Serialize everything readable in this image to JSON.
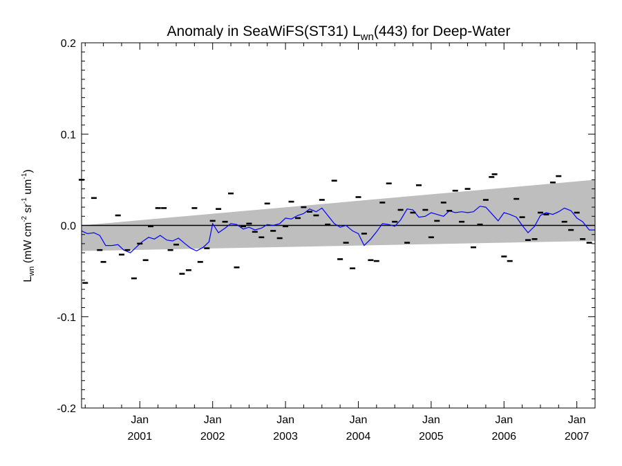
{
  "chart_data": {
    "type": "scatter",
    "title": {
      "prefix": "Anomaly in SeaWiFS(ST31) L",
      "subscript": "wn",
      "suffix": "(443) for Deep-Water"
    },
    "ylabel": {
      "main": "L",
      "subscript": "wn",
      "unit_open": " (mW cm",
      "exp1": "-2",
      "unit_mid": " sr",
      "exp2": "-1",
      "unit_end": " um",
      "exp3": "-1",
      "unit_close": ")"
    },
    "xlim": [
      2000.2,
      2007.25
    ],
    "ylim": [
      -0.2,
      0.2
    ],
    "y_ticks": [
      {
        "value": 0.2,
        "label": "0.2"
      },
      {
        "value": 0.1,
        "label": "0.1"
      },
      {
        "value": 0.0,
        "label": "0.0"
      },
      {
        "value": -0.1,
        "label": "-0.1"
      },
      {
        "value": -0.2,
        "label": "-0.2"
      }
    ],
    "x_ticks": [
      {
        "value": 2001.0,
        "month": "Jan",
        "year": "2001"
      },
      {
        "value": 2002.0,
        "month": "Jan",
        "year": "2002"
      },
      {
        "value": 2003.0,
        "month": "Jan",
        "year": "2003"
      },
      {
        "value": 2004.0,
        "month": "Jan",
        "year": "2004"
      },
      {
        "value": 2005.0,
        "month": "Jan",
        "year": "2005"
      },
      {
        "value": 2006.0,
        "month": "Jan",
        "year": "2006"
      },
      {
        "value": 2007.0,
        "month": "Jan",
        "year": "2007"
      }
    ],
    "zero_line": 0.0,
    "band": {
      "x_start": 2000.2,
      "x_end": 2007.25,
      "upper_start": 0.0,
      "upper_end": 0.05,
      "lower_start": -0.028,
      "lower_end": -0.017,
      "color": "#bebebe"
    },
    "series": [
      {
        "type": "line",
        "color": "#0000ff",
        "points": [
          [
            2000.2,
            -0.006
          ],
          [
            2000.28,
            -0.009
          ],
          [
            2000.37,
            -0.008
          ],
          [
            2000.45,
            -0.011
          ],
          [
            2000.53,
            -0.022
          ],
          [
            2000.62,
            -0.022
          ],
          [
            2000.7,
            -0.021
          ],
          [
            2000.78,
            -0.027
          ],
          [
            2000.87,
            -0.03
          ],
          [
            2000.95,
            -0.024
          ],
          [
            2001.03,
            -0.018
          ],
          [
            2001.12,
            -0.013
          ],
          [
            2001.2,
            -0.015
          ],
          [
            2001.28,
            -0.011
          ],
          [
            2001.37,
            -0.016
          ],
          [
            2001.45,
            -0.017
          ],
          [
            2001.53,
            -0.014
          ],
          [
            2001.62,
            -0.02
          ],
          [
            2001.7,
            -0.025
          ],
          [
            2001.78,
            -0.028
          ],
          [
            2001.87,
            -0.024
          ],
          [
            2001.95,
            -0.018
          ],
          [
            2002.0,
            0.002
          ],
          [
            2002.08,
            -0.008
          ],
          [
            2002.17,
            -0.003
          ],
          [
            2002.25,
            0.002
          ],
          [
            2002.33,
            0.001
          ],
          [
            2002.42,
            -0.004
          ],
          [
            2002.5,
            -0.002
          ],
          [
            2002.58,
            -0.005
          ],
          [
            2002.67,
            -0.003
          ],
          [
            2002.75,
            0.001
          ],
          [
            2002.83,
            0.0
          ],
          [
            2002.92,
            0.002
          ],
          [
            2003.0,
            0.008
          ],
          [
            2003.08,
            0.007
          ],
          [
            2003.17,
            0.011
          ],
          [
            2003.25,
            0.013
          ],
          [
            2003.33,
            0.018
          ],
          [
            2003.42,
            0.015
          ],
          [
            2003.5,
            0.019
          ],
          [
            2003.58,
            0.011
          ],
          [
            2003.67,
            0.002
          ],
          [
            2003.75,
            -0.002
          ],
          [
            2003.83,
            0.0
          ],
          [
            2003.92,
            -0.006
          ],
          [
            2004.0,
            -0.009
          ],
          [
            2004.08,
            -0.022
          ],
          [
            2004.17,
            -0.015
          ],
          [
            2004.25,
            -0.007
          ],
          [
            2004.33,
            0.002
          ],
          [
            2004.42,
            0.001
          ],
          [
            2004.5,
            -0.001
          ],
          [
            2004.58,
            0.006
          ],
          [
            2004.67,
            0.018
          ],
          [
            2004.75,
            0.017
          ],
          [
            2004.83,
            0.009
          ],
          [
            2004.92,
            0.01
          ],
          [
            2005.0,
            0.014
          ],
          [
            2005.08,
            0.012
          ],
          [
            2005.17,
            0.01
          ],
          [
            2005.25,
            0.016
          ],
          [
            2005.33,
            0.014
          ],
          [
            2005.42,
            0.015
          ],
          [
            2005.5,
            0.014
          ],
          [
            2005.58,
            0.015
          ],
          [
            2005.67,
            0.021
          ],
          [
            2005.75,
            0.02
          ],
          [
            2005.83,
            0.013
          ],
          [
            2005.92,
            0.005
          ],
          [
            2006.0,
            0.014
          ],
          [
            2006.08,
            0.012
          ],
          [
            2006.17,
            0.009
          ],
          [
            2006.25,
            0.0
          ],
          [
            2006.33,
            -0.008
          ],
          [
            2006.42,
            -0.001
          ],
          [
            2006.5,
            0.011
          ],
          [
            2006.58,
            0.014
          ],
          [
            2006.67,
            0.012
          ],
          [
            2006.75,
            0.015
          ],
          [
            2006.83,
            0.019
          ],
          [
            2006.92,
            0.016
          ],
          [
            2007.0,
            0.008
          ],
          [
            2007.08,
            0.004
          ],
          [
            2007.17,
            -0.005
          ],
          [
            2007.25,
            -0.005
          ]
        ]
      },
      {
        "type": "scatter",
        "color": "#000000",
        "points": [
          [
            2000.2,
            0.05
          ],
          [
            2000.25,
            -0.063
          ],
          [
            2000.37,
            0.03
          ],
          [
            2000.45,
            -0.027
          ],
          [
            2000.5,
            -0.04
          ],
          [
            2000.7,
            0.011
          ],
          [
            2000.75,
            -0.032
          ],
          [
            2000.83,
            -0.027
          ],
          [
            2000.92,
            -0.058
          ],
          [
            2001.0,
            -0.02
          ],
          [
            2001.08,
            -0.038
          ],
          [
            2001.15,
            -0.001
          ],
          [
            2001.25,
            0.019
          ],
          [
            2001.33,
            0.019
          ],
          [
            2001.42,
            -0.027
          ],
          [
            2001.5,
            -0.021
          ],
          [
            2001.58,
            -0.053
          ],
          [
            2001.67,
            -0.049
          ],
          [
            2001.75,
            0.019
          ],
          [
            2001.83,
            -0.04
          ],
          [
            2001.92,
            -0.025
          ],
          [
            2002.0,
            0.005
          ],
          [
            2002.08,
            0.018
          ],
          [
            2002.17,
            0.004
          ],
          [
            2002.25,
            0.035
          ],
          [
            2002.33,
            -0.046
          ],
          [
            2002.42,
            -0.001
          ],
          [
            2002.5,
            0.002
          ],
          [
            2002.58,
            -0.007
          ],
          [
            2002.67,
            -0.013
          ],
          [
            2002.75,
            0.024
          ],
          [
            2002.83,
            -0.006
          ],
          [
            2002.92,
            -0.014
          ],
          [
            2003.0,
            -0.001
          ],
          [
            2003.08,
            0.026
          ],
          [
            2003.17,
            0.008
          ],
          [
            2003.25,
            0.02
          ],
          [
            2003.33,
            0.015
          ],
          [
            2003.42,
            0.011
          ],
          [
            2003.5,
            0.028
          ],
          [
            2003.58,
            0.001
          ],
          [
            2003.67,
            0.049
          ],
          [
            2003.75,
            -0.037
          ],
          [
            2003.83,
            -0.019
          ],
          [
            2003.92,
            -0.047
          ],
          [
            2004.0,
            0.031
          ],
          [
            2004.08,
            -0.009
          ],
          [
            2004.17,
            -0.038
          ],
          [
            2004.25,
            -0.039
          ],
          [
            2004.33,
            0.025
          ],
          [
            2004.42,
            0.046
          ],
          [
            2004.5,
            0.004
          ],
          [
            2004.58,
            0.017
          ],
          [
            2004.67,
            -0.019
          ],
          [
            2004.75,
            0.014
          ],
          [
            2004.83,
            0.044
          ],
          [
            2004.92,
            0.017
          ],
          [
            2005.0,
            -0.013
          ],
          [
            2005.08,
            0.005
          ],
          [
            2005.17,
            0.025
          ],
          [
            2005.25,
            0.016
          ],
          [
            2005.33,
            0.038
          ],
          [
            2005.42,
            0.004
          ],
          [
            2005.5,
            0.04
          ],
          [
            2005.58,
            -0.024
          ],
          [
            2005.67,
            0.001
          ],
          [
            2005.75,
            0.028
          ],
          [
            2005.83,
            0.053
          ],
          [
            2005.87,
            0.056
          ],
          [
            2006.0,
            -0.034
          ],
          [
            2006.08,
            -0.039
          ],
          [
            2006.17,
            0.029
          ],
          [
            2006.25,
            0.009
          ],
          [
            2006.33,
            -0.016
          ],
          [
            2006.42,
            -0.015
          ],
          [
            2006.5,
            0.014
          ],
          [
            2006.58,
            0.012
          ],
          [
            2006.67,
            0.047
          ],
          [
            2006.75,
            0.054
          ],
          [
            2006.83,
            0.004
          ],
          [
            2006.92,
            -0.005
          ],
          [
            2007.0,
            0.014
          ],
          [
            2007.08,
            -0.015
          ],
          [
            2007.17,
            -0.019
          ]
        ]
      }
    ]
  }
}
